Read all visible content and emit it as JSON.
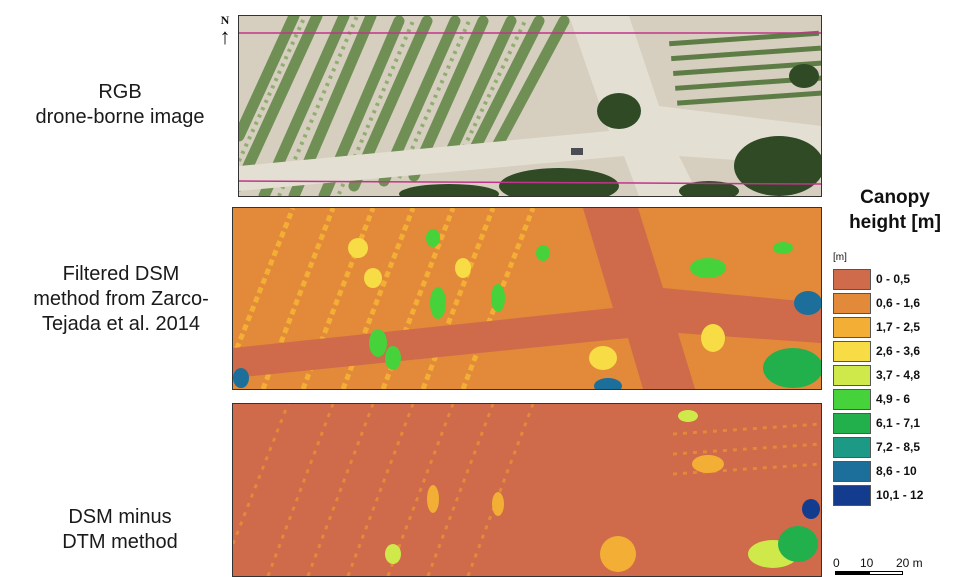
{
  "north_arrow": {
    "letter": "N",
    "glyph": "↑"
  },
  "rows": [
    {
      "id": "rgb",
      "label_lines": [
        "RGB",
        "drone-borne image"
      ]
    },
    {
      "id": "filtered",
      "label_lines": [
        "Filtered DSM",
        "method from Zarco-",
        "Tejada et al. 2014"
      ]
    },
    {
      "id": "dsm_dtm",
      "label_lines": [
        "DSM minus",
        "DTM method"
      ]
    }
  ],
  "legend": {
    "title_lines": [
      "Canopy",
      "height [m]"
    ],
    "unit": "[m]",
    "classes": [
      {
        "label": "0 - 0,5",
        "color": "#cf6a4a"
      },
      {
        "label": "0,6 - 1,6",
        "color": "#e2893a"
      },
      {
        "label": "1,7 - 2,5",
        "color": "#f2ae35"
      },
      {
        "label": "2,6 - 3,6",
        "color": "#f7dc45"
      },
      {
        "label": "3,7 - 4,8",
        "color": "#cfe84a"
      },
      {
        "label": "4,9 - 6",
        "color": "#46d23a"
      },
      {
        "label": "6,1 - 7,1",
        "color": "#22b04c"
      },
      {
        "label": "7,2 - 8,5",
        "color": "#1c9a86"
      },
      {
        "label": "8,6 - 10",
        "color": "#1b6f9a"
      },
      {
        "label": "10,1 - 12",
        "color": "#133c8f"
      }
    ]
  },
  "scale_bar": {
    "labels": [
      "0",
      "10",
      "20 m"
    ]
  },
  "colors": {
    "soil_rgb": "#d9d2c3",
    "vegetation_rgb": "#6f8f55",
    "dark_veg": "#2f4a25",
    "clip_line": "#c0358c"
  }
}
